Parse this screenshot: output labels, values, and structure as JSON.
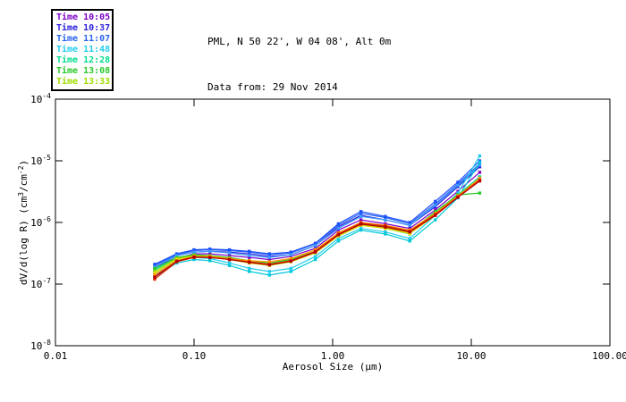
{
  "chart_data": {
    "type": "line",
    "title": "PML, N 50 22', W 04 08', Alt 0m",
    "subtitle": "Data from: 29 Nov 2014",
    "xlabel": "Aerosol Size (μm)",
    "ylabel": "dV/d(log R) (cm³/cm⁻²)",
    "ylabel_parts": [
      "dV/d(log R) (cm",
      "3",
      "/cm",
      "-2",
      ")"
    ],
    "x_scale": "log",
    "y_scale": "log",
    "xlim": [
      0.01,
      100
    ],
    "ylim": [
      1e-08,
      0.0001
    ],
    "x_tick_labels": [
      "0.01",
      "0.10",
      "1.00",
      "10.00",
      "100.00"
    ],
    "y_tick_base": "10",
    "y_tick_exponents": [
      "-4",
      "-5",
      "-6",
      "-7",
      "-8"
    ],
    "grid": false,
    "legend_position": "top-left",
    "legend": [
      {
        "label": "Time 10:05",
        "color": "#7D00C8"
      },
      {
        "label": "Time 10:37",
        "color": "#2A1EDC"
      },
      {
        "label": "Time 11:07",
        "color": "#2864F0"
      },
      {
        "label": "Time 11:48",
        "color": "#22CCEE"
      },
      {
        "label": "Time 12:28",
        "color": "#00DC8C"
      },
      {
        "label": "Time 13:08",
        "color": "#28C828"
      },
      {
        "label": "Time 13:33",
        "color": "#A0DC00"
      }
    ],
    "x": [
      0.052,
      0.075,
      0.1,
      0.13,
      0.18,
      0.25,
      0.35,
      0.5,
      0.75,
      1.1,
      1.6,
      2.4,
      3.6,
      5.5,
      8.0,
      11.5
    ],
    "series": [
      {
        "color": "#7D00C8",
        "values": [
          1.3e-07,
          2.6e-07,
          3.1e-07,
          3.1e-07,
          2.9e-07,
          2.7e-07,
          2.5e-07,
          2.8e-07,
          3.8e-07,
          7.5e-07,
          1.1e-06,
          9.5e-07,
          8e-07,
          1.6e-06,
          3.2e-06,
          6.5e-06
        ]
      },
      {
        "color": "#2A1EDC",
        "values": [
          1.8e-07,
          2.9e-07,
          3.3e-07,
          3.4e-07,
          3.3e-07,
          3.1e-07,
          2.8e-07,
          3e-07,
          4.2e-07,
          8.5e-07,
          1.3e-06,
          1.1e-06,
          9e-07,
          1.8e-06,
          3.8e-06,
          8e-06
        ]
      },
      {
        "color": "#2864F0",
        "values": [
          2e-07,
          3e-07,
          3.5e-07,
          3.6e-07,
          3.5e-07,
          3.3e-07,
          3e-07,
          3.2e-07,
          4.5e-07,
          9e-07,
          1.4e-06,
          1.2e-06,
          9.5e-07,
          2e-06,
          4.2e-06,
          9e-06
        ]
      },
      {
        "color": "#1E4FFF",
        "values": [
          2.1e-07,
          3.1e-07,
          3.6e-07,
          3.7e-07,
          3.6e-07,
          3.4e-07,
          3.1e-07,
          3.3e-07,
          4.6e-07,
          9.5e-07,
          1.5e-06,
          1.25e-06,
          1e-06,
          2.2e-06,
          4.5e-06,
          1e-05
        ]
      },
      {
        "color": "#3B9BFF",
        "values": [
          1.9e-07,
          2.9e-07,
          3.3e-07,
          3.4e-07,
          3.2e-07,
          2.9e-07,
          2.7e-07,
          3e-07,
          4.2e-07,
          8e-07,
          1.25e-06,
          1.1e-06,
          9e-07,
          1.9e-06,
          4e-06,
          8.5e-06
        ]
      },
      {
        "color": "#22CCEE",
        "values": [
          1.5e-07,
          2.4e-07,
          2.7e-07,
          2.6e-07,
          2.2e-07,
          1.8e-07,
          1.6e-07,
          1.8e-07,
          2.8e-07,
          5.5e-07,
          8e-07,
          7e-07,
          5.5e-07,
          1.3e-06,
          3e-06,
          1.2e-05
        ]
      },
      {
        "color": "#00C8D8",
        "values": [
          1.3e-07,
          2.2e-07,
          2.5e-07,
          2.4e-07,
          2e-07,
          1.6e-07,
          1.4e-07,
          1.6e-07,
          2.5e-07,
          5e-07,
          7.5e-07,
          6.5e-07,
          5e-07,
          1.1e-06,
          2.5e-06,
          9.5e-06
        ]
      },
      {
        "color": "#00DC8C",
        "values": [
          1.7e-07,
          2.6e-07,
          2.9e-07,
          2.8e-07,
          2.5e-07,
          2.2e-07,
          2e-07,
          2.3e-07,
          3.2e-07,
          6e-07,
          9e-07,
          8e-07,
          6.5e-07,
          1.4e-06,
          2.8e-06,
          5.5e-06
        ]
      },
      {
        "color": "#28C828",
        "values": [
          1.8e-07,
          2.7e-07,
          3e-07,
          2.9e-07,
          2.7e-07,
          2.4e-07,
          2.2e-07,
          2.5e-07,
          3.4e-07,
          6.5e-07,
          9.5e-07,
          8.5e-07,
          7e-07,
          1.5e-06,
          2.8e-06,
          3e-06
        ]
      },
      {
        "color": "#A0DC00",
        "values": [
          1.6e-07,
          2.6e-07,
          2.9e-07,
          2.85e-07,
          2.6e-07,
          2.3e-07,
          2.1e-07,
          2.4e-07,
          3.3e-07,
          6.2e-07,
          9.2e-07,
          8.2e-07,
          6.8e-07,
          1.4e-06,
          2.7e-06,
          5e-06
        ]
      },
      {
        "color": "#E8D800",
        "values": [
          1.5e-07,
          2.5e-07,
          2.8e-07,
          2.75e-07,
          2.5e-07,
          2.2e-07,
          2e-07,
          2.3e-07,
          3.2e-07,
          6e-07,
          9e-07,
          8e-07,
          6.6e-07,
          1.3e-06,
          2.6e-06,
          4.8e-06
        ]
      },
      {
        "color": "#FF9900",
        "values": [
          1.4e-07,
          2.4e-07,
          2.8e-07,
          2.8e-07,
          2.6e-07,
          2.4e-07,
          2.3e-07,
          2.6e-07,
          3.6e-07,
          6.8e-07,
          1e-06,
          9e-07,
          7.5e-07,
          1.4e-06,
          2.7e-06,
          5.2e-06
        ]
      },
      {
        "color": "#E82800",
        "values": [
          1.2e-07,
          2.3e-07,
          2.7e-07,
          2.7e-07,
          2.5e-07,
          2.3e-07,
          2.1e-07,
          2.4e-07,
          3.4e-07,
          6.5e-07,
          9.8e-07,
          8.8e-07,
          7.2e-07,
          1.35e-06,
          2.6e-06,
          4.9e-06
        ]
      },
      {
        "color": "#B40000",
        "values": [
          1.3e-07,
          2.35e-07,
          2.75e-07,
          2.7e-07,
          2.5e-07,
          2.25e-07,
          2.05e-07,
          2.35e-07,
          3.3e-07,
          6.3e-07,
          9.4e-07,
          8.4e-07,
          7e-07,
          1.3e-06,
          2.55e-06,
          4.7e-06
        ]
      }
    ],
    "colors": {
      "axis": "#000000",
      "background": "#ffffff"
    }
  }
}
